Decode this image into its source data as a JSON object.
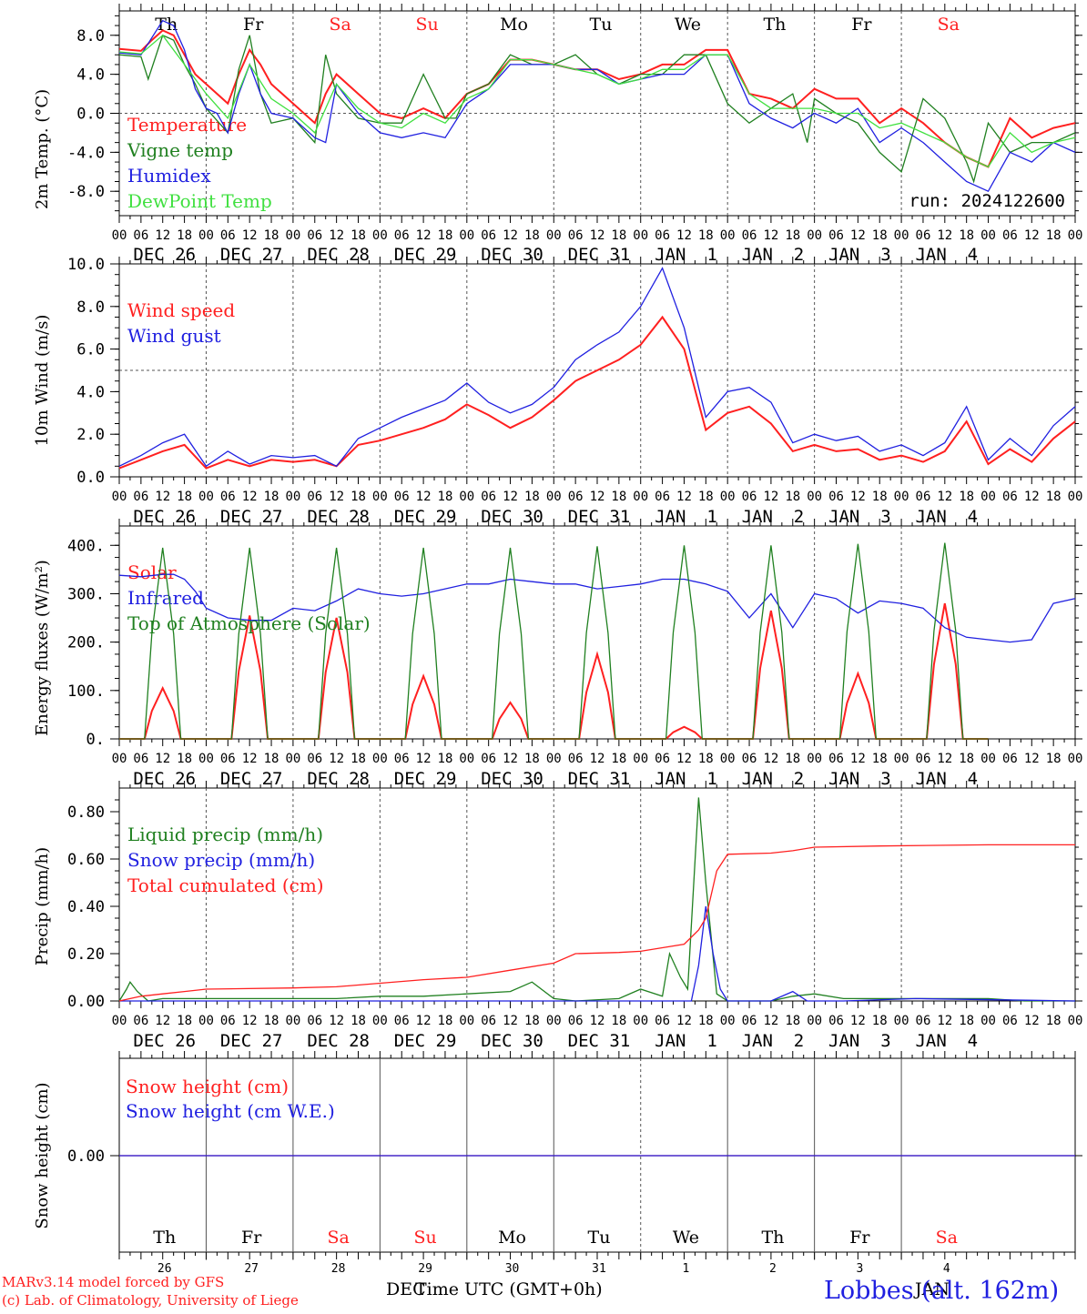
{
  "colors": {
    "red": "#ff2020",
    "green": "#208020",
    "blue": "#2020e0",
    "lightgreen": "#40e040",
    "axis": "#000000",
    "gray": "#606060"
  },
  "ticks": {
    "hours": [
      "00",
      "06",
      "12",
      "18"
    ],
    "last_hour": "00",
    "day_labels": [
      "DEC 26",
      "DEC 27",
      "DEC 28",
      "DEC 29",
      "DEC 30",
      "DEC 31",
      "JAN  1",
      "JAN  2",
      "JAN  3",
      "JAN  4"
    ],
    "weekdays": [
      "Th",
      "Fr",
      "Sa",
      "Su",
      "Mo",
      "Tu",
      "We",
      "Th",
      "Fr",
      "Sa"
    ],
    "weekend_flags": [
      false,
      false,
      true,
      true,
      false,
      false,
      false,
      false,
      false,
      true
    ],
    "day_numbers": [
      "26",
      "27",
      "28",
      "29",
      "30",
      "31",
      "1",
      "2",
      "3",
      "4"
    ]
  },
  "footer": {
    "model_line": "MARv3.14 model forced by GFS",
    "credit_line": "(c) Lab. of Climatology, University of Liege",
    "xaxis_title": "Time UTC (GMT+0h)",
    "month_dec": "DEC",
    "month_jan": "JAN",
    "station": "Lobbes (alt. 162m)"
  },
  "chart_data": [
    {
      "type": "line",
      "ylabel": "2m Temp. (°C)",
      "ylim": [
        -10.5,
        10.5
      ],
      "yticks": [
        8.0,
        4.0,
        0.0,
        -4.0,
        -8.0
      ],
      "ytick_labels": [
        "8.0",
        "4.0",
        "0.0",
        "-4.0",
        "-8.0"
      ],
      "annotation": "run: 2024122600",
      "x_unit": "hours since Dec 26 00 UTC",
      "reference_line": 0,
      "series": [
        {
          "name": "Temperature",
          "color": "red",
          "x": [
            0,
            6,
            9,
            12,
            15,
            18,
            21,
            24,
            30,
            33,
            36,
            39,
            42,
            48,
            54,
            57,
            60,
            66,
            72,
            78,
            84,
            90,
            96,
            102,
            108,
            114,
            120,
            126,
            132,
            138,
            144,
            150,
            156,
            162,
            168,
            174,
            180,
            186,
            192,
            198,
            204,
            210,
            216,
            222,
            228,
            234,
            240,
            246,
            252,
            258,
            264
          ],
          "y": [
            6.6,
            6.4,
            7.5,
            8.5,
            8,
            6,
            4,
            3,
            1,
            4,
            6.5,
            5,
            3,
            1,
            -1,
            2,
            4,
            2,
            0,
            -0.5,
            0.5,
            -0.5,
            2,
            3,
            5.5,
            5.5,
            5,
            4.5,
            4.5,
            3.5,
            4,
            5,
            5,
            6.5,
            6.5,
            2,
            1.5,
            0.5,
            2.5,
            1.5,
            1.5,
            -1,
            0.5,
            -1,
            -3,
            -4.5,
            -5.5,
            -0.5,
            -2.5,
            -1.5,
            -1
          ]
        },
        {
          "name": "Vigne temp",
          "color": "green",
          "x": [
            0,
            6,
            8,
            12,
            15,
            18,
            21,
            24,
            30,
            33,
            36,
            39,
            42,
            48,
            54,
            57,
            60,
            66,
            72,
            78,
            84,
            90,
            93,
            96,
            102,
            108,
            114,
            120,
            126,
            132,
            138,
            144,
            150,
            156,
            162,
            168,
            174,
            180,
            186,
            190,
            192,
            198,
            204,
            210,
            216,
            222,
            228,
            234,
            236,
            240,
            246,
            252,
            258,
            264
          ],
          "y": [
            6,
            5.8,
            3.5,
            8,
            7.5,
            5,
            3,
            0.5,
            -2,
            4.5,
            8,
            2,
            -1,
            -0.5,
            -3,
            6,
            2,
            -0.5,
            -1,
            -1,
            4,
            -0.5,
            -0.5,
            2,
            3,
            6,
            5,
            5,
            6,
            4,
            3,
            4,
            4,
            6,
            6,
            1,
            -1,
            0.5,
            2,
            -3,
            1.5,
            0,
            -1,
            -4,
            -6,
            1.5,
            -0.5,
            -5,
            -7,
            -1,
            -4,
            -3,
            -3,
            -2
          ]
        },
        {
          "name": "Humidex",
          "color": "blue",
          "x": [
            0,
            6,
            12,
            15,
            18,
            21,
            24,
            27,
            30,
            33,
            36,
            39,
            42,
            48,
            54,
            57,
            60,
            66,
            72,
            78,
            84,
            90,
            96,
            102,
            108,
            114,
            120,
            126,
            132,
            138,
            144,
            150,
            156,
            162,
            168,
            174,
            180,
            186,
            192,
            198,
            204,
            210,
            216,
            222,
            228,
            234,
            240,
            246,
            252,
            258,
            264
          ],
          "y": [
            6.2,
            6,
            9.5,
            9,
            6.5,
            2.5,
            0.5,
            0,
            -2,
            2,
            5,
            2,
            0,
            -0.5,
            -2.5,
            -3,
            3,
            0,
            -2,
            -2.5,
            -2,
            -2.5,
            1,
            2.5,
            5,
            5,
            5,
            4.5,
            4.5,
            3,
            3.5,
            4,
            4,
            6,
            6,
            1,
            -0.5,
            -1.5,
            0,
            -1,
            0.5,
            -3,
            -1.5,
            -3,
            -5,
            -7,
            -8,
            -4,
            -5,
            -3,
            -4
          ]
        },
        {
          "name": "DewPoint Temp",
          "color": "lightgreen",
          "x": [
            0,
            6,
            12,
            18,
            24,
            30,
            36,
            42,
            48,
            54,
            60,
            66,
            72,
            78,
            84,
            90,
            96,
            102,
            108,
            114,
            120,
            126,
            132,
            138,
            144,
            150,
            156,
            162,
            168,
            174,
            180,
            186,
            192,
            198,
            204,
            210,
            216,
            222,
            228,
            234,
            240,
            246,
            252,
            258,
            264
          ],
          "y": [
            6.3,
            6.1,
            8,
            5,
            2,
            -0.5,
            5,
            1.5,
            0,
            -2,
            3,
            0.5,
            -1,
            -1.5,
            0,
            -1,
            1.5,
            2.5,
            5.5,
            5.5,
            5,
            4.5,
            4,
            3,
            3.5,
            4.5,
            4.5,
            6,
            6,
            2,
            0.5,
            0.5,
            0.5,
            0,
            0,
            -1.5,
            -1,
            -2,
            -3,
            -4.5,
            -5.5,
            -2,
            -4,
            -3,
            -2.5
          ]
        }
      ]
    },
    {
      "type": "line",
      "ylabel": "10m Wind (m/s)",
      "ylim": [
        0,
        10
      ],
      "yticks": [
        0,
        2,
        4,
        6,
        8,
        10
      ],
      "ytick_labels": [
        "0.0",
        "2.0",
        "4.0",
        "6.0",
        "8.0",
        "10.0"
      ],
      "reference_line": 5,
      "series": [
        {
          "name": "Wind speed",
          "color": "red",
          "x": [
            0,
            6,
            12,
            18,
            24,
            30,
            36,
            42,
            48,
            54,
            60,
            66,
            72,
            78,
            84,
            90,
            96,
            102,
            108,
            114,
            120,
            126,
            132,
            138,
            144,
            150,
            156,
            162,
            168,
            174,
            180,
            186,
            192,
            198,
            204,
            210,
            216,
            222,
            228,
            234,
            240,
            246,
            252,
            258,
            264
          ],
          "y": [
            0.4,
            0.8,
            1.2,
            1.5,
            0.4,
            0.8,
            0.5,
            0.8,
            0.7,
            0.8,
            0.5,
            1.5,
            1.7,
            2.0,
            2.3,
            2.7,
            3.4,
            2.9,
            2.3,
            2.8,
            3.6,
            4.5,
            5.0,
            5.5,
            6.2,
            7.5,
            6.0,
            2.2,
            3.0,
            3.3,
            2.5,
            1.2,
            1.5,
            1.2,
            1.3,
            0.8,
            1.0,
            0.7,
            1.2,
            2.6,
            0.6,
            1.3,
            0.7,
            1.8,
            2.6
          ]
        },
        {
          "name": "Wind gust",
          "color": "blue",
          "x": [
            0,
            6,
            12,
            18,
            24,
            30,
            36,
            42,
            48,
            54,
            60,
            66,
            72,
            78,
            84,
            90,
            96,
            102,
            108,
            114,
            120,
            126,
            132,
            138,
            144,
            150,
            156,
            162,
            168,
            174,
            180,
            186,
            192,
            198,
            204,
            210,
            216,
            222,
            228,
            234,
            240,
            246,
            252,
            258,
            264
          ],
          "y": [
            0.5,
            1.0,
            1.6,
            2.0,
            0.5,
            1.2,
            0.6,
            1.0,
            0.9,
            1.0,
            0.5,
            1.8,
            2.3,
            2.8,
            3.2,
            3.6,
            4.4,
            3.5,
            3.0,
            3.4,
            4.2,
            5.5,
            6.2,
            6.8,
            8.0,
            9.8,
            7.0,
            2.8,
            4.0,
            4.2,
            3.5,
            1.6,
            2.0,
            1.7,
            1.9,
            1.2,
            1.5,
            1.0,
            1.6,
            3.3,
            0.8,
            1.8,
            1.0,
            2.4,
            3.3
          ]
        }
      ]
    },
    {
      "type": "line",
      "ylabel": "Energy fluxes (W/m²)",
      "ylim": [
        0,
        440
      ],
      "yticks": [
        0,
        100,
        200,
        300,
        400
      ],
      "ytick_labels": [
        "0.",
        "100.",
        "200.",
        "300.",
        "400."
      ],
      "series": [
        {
          "name": "Solar",
          "color": "red",
          "peaks": [
            105,
            255,
            250,
            130,
            75,
            175,
            25,
            265,
            135,
            280
          ]
        },
        {
          "name": "Infrared",
          "color": "blue",
          "x": [
            0,
            6,
            12,
            15,
            18,
            21,
            24,
            30,
            36,
            42,
            48,
            54,
            60,
            66,
            72,
            78,
            84,
            90,
            96,
            102,
            108,
            114,
            120,
            126,
            132,
            138,
            144,
            150,
            156,
            162,
            168,
            174,
            180,
            186,
            192,
            198,
            204,
            210,
            216,
            222,
            228,
            234,
            240,
            246,
            252,
            258,
            264
          ],
          "y": [
            338,
            335,
            340,
            340,
            330,
            305,
            270,
            250,
            245,
            245,
            270,
            265,
            285,
            310,
            300,
            295,
            300,
            310,
            320,
            320,
            330,
            325,
            320,
            320,
            310,
            315,
            320,
            330,
            330,
            320,
            305,
            250,
            300,
            230,
            300,
            290,
            260,
            285,
            280,
            270,
            230,
            210,
            205,
            200,
            205,
            280,
            290
          ]
        },
        {
          "name": "Top of Atmosphere (Solar)",
          "color": "green",
          "peaks": [
            395,
            395,
            395,
            395,
            395,
            398,
            400,
            400,
            403,
            405
          ]
        }
      ]
    },
    {
      "type": "line",
      "ylabel": "Precip (mm/h)",
      "ylim": [
        0,
        0.9
      ],
      "yticks": [
        0,
        0.2,
        0.4,
        0.6,
        0.8
      ],
      "ytick_labels": [
        "0.00",
        "0.20",
        "0.40",
        "0.60",
        "0.80"
      ],
      "series": [
        {
          "name": "Liquid precip (mm/h)",
          "color": "green",
          "x": [
            0,
            2,
            3,
            5,
            8,
            12,
            24,
            60,
            72,
            84,
            96,
            108,
            114,
            120,
            126,
            138,
            144,
            150,
            152,
            155,
            157,
            160,
            162,
            165,
            168,
            180,
            186,
            192,
            200,
            210,
            220,
            230,
            240,
            250,
            264
          ],
          "y": [
            0,
            0.05,
            0.08,
            0.04,
            0,
            0.01,
            0.01,
            0.01,
            0.02,
            0.02,
            0.03,
            0.04,
            0.08,
            0.01,
            0.0,
            0.01,
            0.05,
            0.02,
            0.2,
            0.1,
            0.05,
            0.86,
            0.5,
            0.03,
            0.0,
            0.0,
            0.02,
            0.03,
            0.01,
            0.01,
            0.01,
            0.01,
            0.01,
            0.0,
            0.0
          ]
        },
        {
          "name": "Snow precip (mm/h)",
          "color": "blue",
          "x": [
            0,
            150,
            158,
            160,
            162,
            164,
            166,
            168,
            180,
            186,
            190,
            200,
            220,
            264
          ],
          "y": [
            0,
            0,
            0,
            0.15,
            0.4,
            0.2,
            0.05,
            0.0,
            0.0,
            0.04,
            0.0,
            0.0,
            0.01,
            0.0
          ]
        },
        {
          "name": "Total cumulated (cm)",
          "color": "red",
          "x": [
            0,
            6,
            12,
            18,
            24,
            48,
            60,
            72,
            84,
            96,
            108,
            120,
            126,
            138,
            144,
            150,
            156,
            160,
            162,
            165,
            168,
            180,
            186,
            192,
            210,
            240,
            264
          ],
          "y": [
            0.0,
            0.02,
            0.03,
            0.04,
            0.05,
            0.055,
            0.06,
            0.075,
            0.09,
            0.1,
            0.13,
            0.16,
            0.2,
            0.205,
            0.21,
            0.225,
            0.24,
            0.3,
            0.35,
            0.55,
            0.62,
            0.625,
            0.635,
            0.65,
            0.655,
            0.66,
            0.66
          ]
        }
      ]
    },
    {
      "type": "line",
      "ylabel": "Snow height (cm)",
      "yticks": [
        0
      ],
      "ytick_labels": [
        "0.00"
      ],
      "series": [
        {
          "name": "Snow height (cm)",
          "color": "red",
          "x": [
            0,
            264
          ],
          "y": [
            0,
            0
          ]
        },
        {
          "name": "Snow height (cm W.E.)",
          "color": "blue",
          "x": [
            0,
            264
          ],
          "y": [
            0,
            0
          ]
        }
      ]
    }
  ]
}
